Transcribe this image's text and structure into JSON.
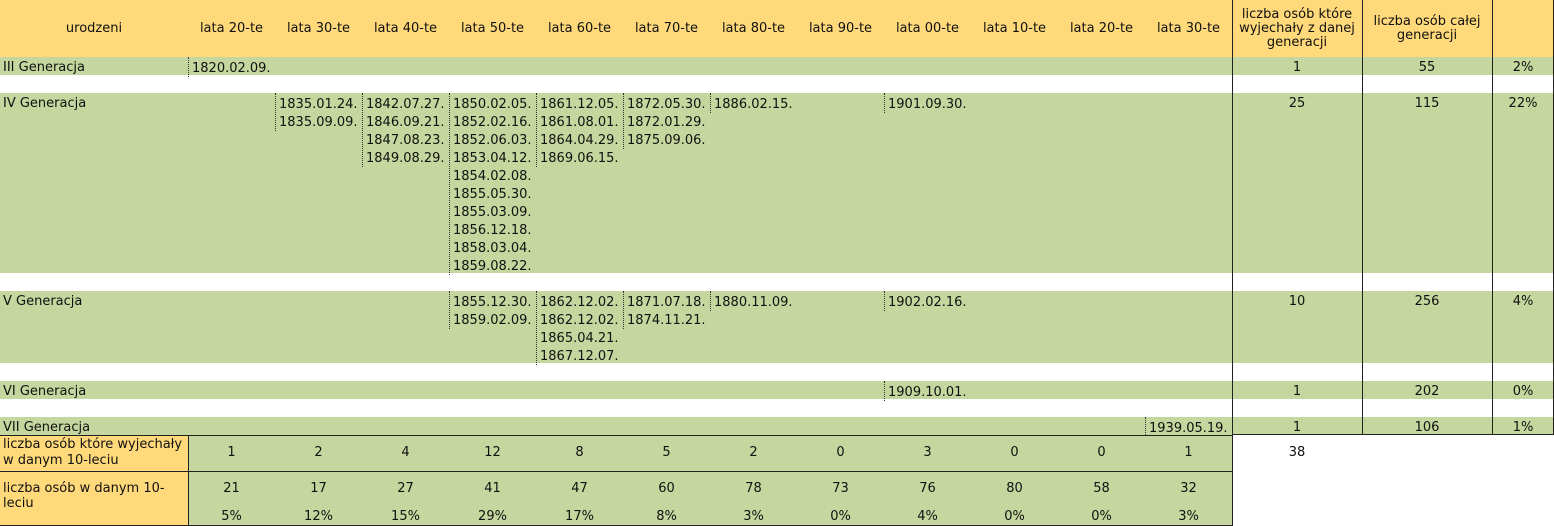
{
  "header": {
    "born": "urodzeni",
    "decades": [
      "lata 20-te",
      "lata 30-te",
      "lata 40-te",
      "lata 50-te",
      "lata 60-te",
      "lata 70-te",
      "lata 80-te",
      "lata 90-te",
      "lata 00-te",
      "lata 10-te",
      "lata 20-te",
      "lata 30-te"
    ],
    "left_col": "liczba osób które wyjechały z danej generacji",
    "total_col": "liczba osób całej generacji",
    "pct_col": ""
  },
  "generations": [
    {
      "name": "III Generacja",
      "cols": [
        [
          "1820.02.09."
        ],
        [],
        [],
        [],
        [],
        [],
        [],
        [],
        [],
        [],
        [],
        []
      ],
      "left": "1",
      "total": "55",
      "pct": "2%"
    },
    {
      "name": "IV Generacja",
      "cols": [
        [],
        [
          "1835.01.24.",
          "1835.09.09."
        ],
        [
          "1842.07.27.",
          "1846.09.21.",
          "1847.08.23.",
          "1849.08.29."
        ],
        [
          "1850.02.05.",
          "1852.02.16.",
          "1852.06.03.",
          "1853.04.12.",
          "1854.02.08.",
          "1855.05.30.",
          "1855.03.09.",
          "1856.12.18.",
          "1858.03.04.",
          "1859.08.22."
        ],
        [
          "1861.12.05.",
          "1861.08.01.",
          "1864.04.29.",
          "1869.06.15."
        ],
        [
          "1872.05.30.",
          "1872.01.29.",
          "1875.09.06."
        ],
        [
          "1886.02.15."
        ],
        [],
        [
          "1901.09.30."
        ],
        [],
        [],
        []
      ],
      "left": "25",
      "total": "115",
      "pct": "22%"
    },
    {
      "name": "V Generacja",
      "cols": [
        [],
        [],
        [],
        [
          "1855.12.30.",
          "1859.02.09."
        ],
        [
          "1862.12.02.",
          "1862.12.02.",
          "1865.04.21.",
          "1867.12.07."
        ],
        [
          "1871.07.18.",
          "1874.11.21."
        ],
        [
          "1880.11.09."
        ],
        [],
        [
          "1902.02.16."
        ],
        [],
        [],
        []
      ],
      "left": "10",
      "total": "256",
      "pct": "4%"
    },
    {
      "name": "VI Generacja",
      "cols": [
        [],
        [],
        [],
        [],
        [],
        [],
        [],
        [],
        [
          "1909.10.01."
        ],
        [],
        [],
        []
      ],
      "left": "1",
      "total": "202",
      "pct": "0%"
    },
    {
      "name": "VII Generacja",
      "cols": [
        [],
        [],
        [],
        [],
        [],
        [],
        [],
        [],
        [],
        [],
        [],
        [
          "1939.05.19."
        ]
      ],
      "left": "1",
      "total": "106",
      "pct": "1%"
    }
  ],
  "summary": {
    "left_label": "liczba osób które wyjechały w danym 10-leciu",
    "left_values": [
      "1",
      "2",
      "4",
      "12",
      "8",
      "5",
      "2",
      "0",
      "3",
      "0",
      "0",
      "1"
    ],
    "left_total": "38",
    "count_label": "liczba osób w danym 10-leciu",
    "count_values": [
      "21",
      "17",
      "27",
      "41",
      "47",
      "60",
      "78",
      "73",
      "76",
      "80",
      "58",
      "32"
    ],
    "pct_values": [
      "5%",
      "12%",
      "15%",
      "29%",
      "17%",
      "8%",
      "3%",
      "0%",
      "4%",
      "0%",
      "0%",
      "3%"
    ]
  }
}
